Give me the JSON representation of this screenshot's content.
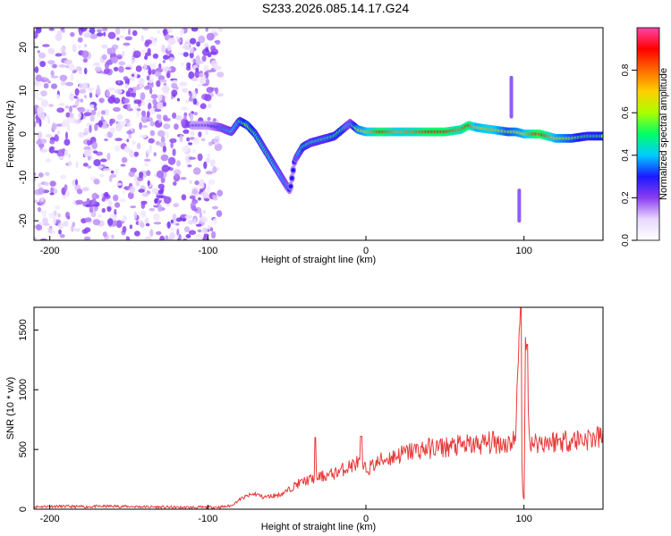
{
  "title": "S233.2026.085.14.17.G24",
  "colors": {
    "line": "#e83a3a",
    "colormap": [
      "#ffffff",
      "#e8d8ff",
      "#8a3cf0",
      "#1a1aff",
      "#00ccff",
      "#00ff66",
      "#aaff00",
      "#ffd000",
      "#ff6a00",
      "#ff0000",
      "#ff44aa"
    ]
  },
  "chart_data": [
    {
      "type": "heatmap",
      "title": "",
      "xlabel": "Height of straight line (km)",
      "ylabel": "Frequency (Hz)",
      "xlim": [
        -210,
        150
      ],
      "ylim": [
        -24.5,
        24.5
      ],
      "xticks": [
        -200,
        -100,
        0,
        100
      ],
      "yticks": [
        -20,
        -10,
        0,
        10,
        20
      ],
      "ridge": {
        "description": "dominant frequency trace, frequency vs height",
        "x": [
          -110,
          -100,
          -92,
          -85,
          -80,
          -75,
          -70,
          -65,
          -60,
          -55,
          -50,
          -48,
          -45,
          -40,
          -35,
          -30,
          -25,
          -20,
          -15,
          -10,
          -5,
          0,
          10,
          20,
          30,
          40,
          50,
          60,
          65,
          70,
          80,
          90,
          95,
          100,
          110,
          120,
          130,
          140,
          150
        ],
        "freq": [
          2,
          2,
          1.5,
          0.5,
          3,
          2,
          0,
          -3,
          -6,
          -9,
          -12,
          -13,
          -6,
          -3,
          -2,
          -1.5,
          -1,
          -0.5,
          1,
          2.5,
          1,
          0.5,
          0.5,
          0.5,
          0.5,
          0.5,
          0.5,
          1,
          2,
          1.5,
          1,
          0.5,
          0.5,
          0,
          0,
          -1,
          -1,
          -0.5,
          -0.5
        ],
        "amplitude": [
          0.25,
          0.25,
          0.35,
          0.4,
          0.45,
          0.6,
          0.5,
          0.45,
          0.45,
          0.4,
          0.35,
          0.3,
          0.3,
          0.5,
          0.45,
          0.45,
          0.45,
          0.5,
          0.5,
          0.35,
          0.65,
          0.7,
          0.9,
          0.75,
          0.8,
          0.9,
          0.9,
          0.8,
          0.9,
          0.7,
          0.75,
          0.6,
          0.65,
          0.7,
          0.95,
          0.7,
          0.6,
          0.5,
          0.55
        ]
      },
      "noise_region": {
        "x_from": -210,
        "x_to": -92,
        "amplitude": 0.15
      },
      "spikes": [
        {
          "x": 92,
          "f_from": 4,
          "f_to": 13
        },
        {
          "x": 97,
          "f_from": -13,
          "f_to": -20
        }
      ],
      "colorbar": {
        "label": "Normalized spectral amplitude",
        "range": [
          0,
          1
        ],
        "ticks": [
          "0.0",
          "0.2",
          "0.4",
          "0.6",
          "0.8"
        ],
        "tick_values": [
          0,
          0.2,
          0.4,
          0.6,
          0.8
        ]
      }
    },
    {
      "type": "line",
      "title": "",
      "xlabel": "Height of straight line (km)",
      "ylabel": "SNR (10 * v/v)",
      "xlim": [
        -210,
        150
      ],
      "ylim": [
        0,
        1690
      ],
      "xticks": [
        -200,
        -100,
        0,
        100
      ],
      "yticks": [
        0,
        500,
        1000,
        1500
      ],
      "series": [
        {
          "name": "SNR",
          "x": [
            -210,
            -200,
            -180,
            -160,
            -140,
            -120,
            -100,
            -90,
            -85,
            -80,
            -75,
            -70,
            -65,
            -60,
            -55,
            -50,
            -45,
            -40,
            -35,
            -30,
            -25,
            -20,
            -15,
            -10,
            -5,
            0,
            5,
            10,
            20,
            30,
            40,
            50,
            60,
            70,
            80,
            90,
            95,
            97,
            98,
            99,
            100,
            101,
            103,
            105,
            110,
            120,
            130,
            140,
            150
          ],
          "y": [
            20,
            25,
            20,
            25,
            20,
            15,
            15,
            20,
            30,
            80,
            110,
            130,
            100,
            110,
            120,
            150,
            200,
            230,
            250,
            270,
            280,
            300,
            330,
            360,
            390,
            330,
            370,
            410,
            450,
            490,
            510,
            520,
            530,
            540,
            560,
            550,
            600,
            1690,
            950,
            200,
            10,
            1380,
            640,
            560,
            560,
            570,
            580,
            590,
            600
          ]
        }
      ],
      "peaks": [
        {
          "x": -32,
          "y": 600
        },
        {
          "x": -3,
          "y": 610
        },
        {
          "x": 98,
          "y": 1690
        },
        {
          "x": 102,
          "y": 1380
        }
      ]
    }
  ]
}
